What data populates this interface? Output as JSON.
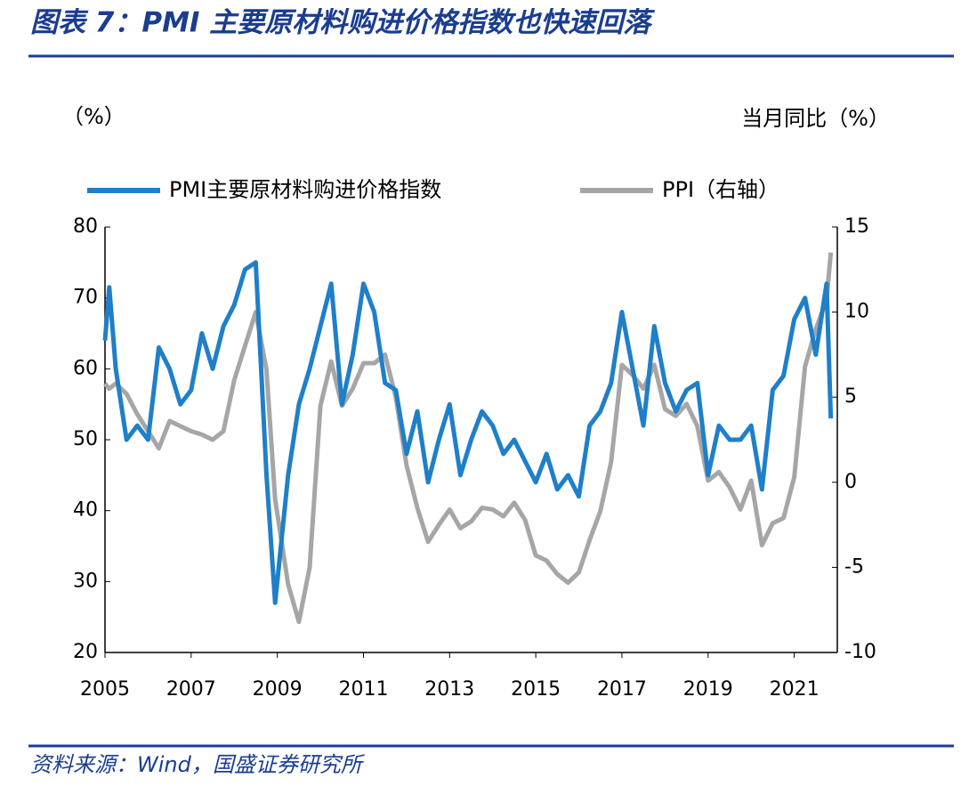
{
  "chart_data": {
    "type": "line",
    "title": "图表 7：PMI 主要原材料购进价格指数也快速回落",
    "y_label": "（%）",
    "y2_label": "当月同比（%）",
    "source": "资料来源：Wind，国盛证券研究所",
    "x": [
      2005,
      2005.1,
      2005.25,
      2005.5,
      2005.75,
      2006,
      2006.25,
      2006.5,
      2006.75,
      2007,
      2007.25,
      2007.5,
      2007.75,
      2008,
      2008.25,
      2008.5,
      2008.75,
      2008.95,
      2009.25,
      2009.5,
      2009.75,
      2010,
      2010.25,
      2010.5,
      2010.75,
      2011,
      2011.25,
      2011.5,
      2011.75,
      2012,
      2012.25,
      2012.5,
      2012.75,
      2013,
      2013.25,
      2013.5,
      2013.75,
      2014,
      2014.25,
      2014.5,
      2014.75,
      2015,
      2015.25,
      2015.5,
      2015.75,
      2016,
      2016.25,
      2016.5,
      2016.75,
      2017,
      2017.25,
      2017.5,
      2017.75,
      2018,
      2018.25,
      2018.5,
      2018.75,
      2019,
      2019.25,
      2019.5,
      2019.75,
      2020,
      2020.25,
      2020.5,
      2020.75,
      2021,
      2021.25,
      2021.5,
      2021.75,
      2021.85
    ],
    "series": [
      {
        "name": "PMI主要原材料购进价格指数",
        "color": "#1f7fc9",
        "values": [
          64,
          71.5,
          60,
          50,
          52,
          50,
          63,
          60,
          55,
          57,
          65,
          60,
          66,
          69,
          74,
          75,
          45,
          27,
          45,
          55,
          60,
          66,
          72,
          55,
          62,
          72,
          68,
          58,
          57,
          48,
          54,
          44,
          50,
          55,
          45,
          50,
          54,
          52,
          48,
          50,
          47,
          44,
          48,
          43,
          45,
          42,
          52,
          54,
          58,
          68,
          60,
          52,
          66,
          58,
          54,
          57,
          58,
          45,
          52,
          50,
          50,
          52,
          43,
          57,
          59,
          67,
          70,
          62,
          72,
          53
        ]
      },
      {
        "name": "PPI（右轴）",
        "color": "#a6a6a6",
        "axis": "y2",
        "values": [
          5.8,
          5.5,
          5.8,
          5.2,
          4.0,
          3.0,
          2.0,
          3.6,
          3.3,
          3.0,
          2.8,
          2.5,
          3.0,
          6.0,
          8.0,
          10.0,
          6.6,
          -1,
          -6,
          -8.2,
          -5,
          4.5,
          7.1,
          4.5,
          5.5,
          7.0,
          7.0,
          7.5,
          5.0,
          1.0,
          -1.5,
          -3.5,
          -2.5,
          -1.6,
          -2.7,
          -2.3,
          -1.5,
          -1.6,
          -2.0,
          -1.2,
          -2.2,
          -4.3,
          -4.6,
          -5.4,
          -5.9,
          -5.3,
          -3.4,
          -1.7,
          1.2,
          6.9,
          6.3,
          5.5,
          6.9,
          4.3,
          3.9,
          4.6,
          3.3,
          0.1,
          0.6,
          -0.3,
          -1.6,
          0.1,
          -3.7,
          -2.4,
          -2.1,
          0.3,
          6.8,
          9.0,
          10.7,
          13.5
        ]
      }
    ],
    "xlim": [
      2005,
      2022
    ],
    "xticks": [
      2005,
      2007,
      2009,
      2011,
      2013,
      2015,
      2017,
      2019,
      2021
    ],
    "ylim": [
      20,
      80
    ],
    "yticks": [
      20,
      30,
      40,
      50,
      60,
      70,
      80
    ],
    "y2lim": [
      -10,
      15
    ],
    "y2ticks": [
      -10,
      -5,
      0,
      5,
      10,
      15
    ],
    "legend": "top"
  }
}
